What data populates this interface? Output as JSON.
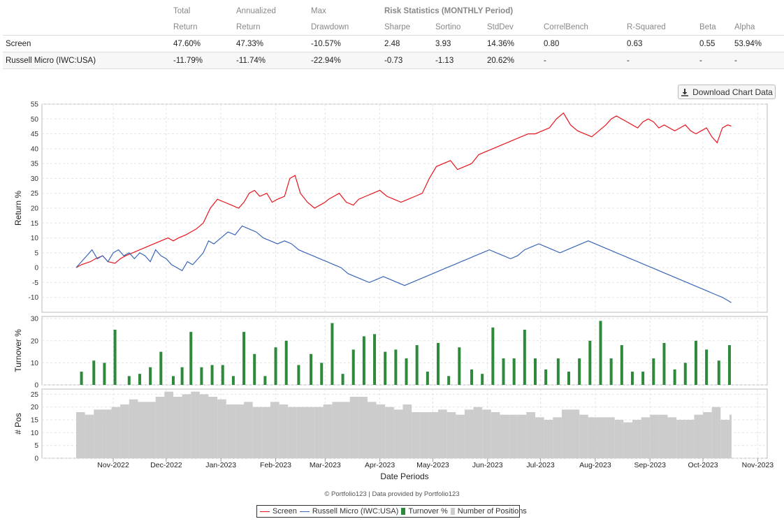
{
  "stats": {
    "header1": [
      "",
      "Total",
      "Annualized",
      "Max",
      "Risk Statistics (MONTHLY Period)"
    ],
    "header2": [
      "",
      "Return",
      "Return",
      "Drawdown",
      "Sharpe",
      "Sortino",
      "StdDev",
      "CorrelBench",
      "R-Squared",
      "Beta",
      "Alpha"
    ],
    "rows": [
      {
        "name": "Screen",
        "cells": [
          "47.60%",
          "47.33%",
          "-10.57%",
          "2.48",
          "3.93",
          "14.36%",
          "0.80",
          "0.63",
          "0.55",
          "53.94%"
        ]
      },
      {
        "name": "Russell Micro (IWC:USA)",
        "cells": [
          "-11.79%",
          "-11.74%",
          "-22.94%",
          "-0.73",
          "-1.13",
          "20.62%",
          "-",
          "-",
          "-",
          "-"
        ]
      }
    ]
  },
  "download_button": {
    "label": "Download Chart Data",
    "icon": "download-icon"
  },
  "credit": "© Portfolio123 | Data provided by Portfolio123",
  "legend": [
    {
      "label": "Screen",
      "kind": "line",
      "color": "#e8141c"
    },
    {
      "label": "Russell Micro (IWC:USA)",
      "kind": "line",
      "color": "#3a66b8"
    },
    {
      "label": "Turnover %",
      "kind": "box",
      "color": "#2d8a3a"
    },
    {
      "label": "Number of Positions",
      "kind": "box",
      "color": "#cccccc"
    }
  ],
  "chart_data": [
    {
      "type": "line",
      "title": "",
      "xlabel": "Date Periods",
      "ylabel": "Return %",
      "ylim": [
        -15,
        55
      ],
      "yticks": [
        -10,
        -5,
        0,
        5,
        10,
        15,
        20,
        25,
        30,
        35,
        40,
        45,
        50,
        55
      ],
      "x_domain": [
        0,
        372
      ],
      "xticks": [
        {
          "x": 21,
          "label": "Nov-2022"
        },
        {
          "x": 51,
          "label": "Dec-2022"
        },
        {
          "x": 82,
          "label": "Jan-2023"
        },
        {
          "x": 113,
          "label": "Feb-2023"
        },
        {
          "x": 141,
          "label": "Mar-2023"
        },
        {
          "x": 172,
          "label": "Apr-2023"
        },
        {
          "x": 202,
          "label": "May-2023"
        },
        {
          "x": 233,
          "label": "Jun-2023"
        },
        {
          "x": 263,
          "label": "Jul-2023"
        },
        {
          "x": 294,
          "label": "Aug-2023"
        },
        {
          "x": 325,
          "label": "Sep-2023"
        },
        {
          "x": 355,
          "label": "Oct-2023"
        },
        {
          "x": 386,
          "label": "Nov-2023"
        }
      ],
      "series": [
        {
          "name": "Screen",
          "color": "#e8141c",
          "x": [
            0,
            3,
            8,
            11,
            15,
            18,
            22,
            25,
            28,
            32,
            36,
            40,
            44,
            48,
            52,
            55,
            58,
            62,
            65,
            68,
            72,
            76,
            80,
            84,
            88,
            92,
            95,
            98,
            101,
            104,
            108,
            111,
            114,
            118,
            121,
            124,
            127,
            131,
            135,
            138,
            141,
            143,
            146,
            149,
            153,
            157,
            160,
            164,
            168,
            172,
            176,
            180,
            184,
            188,
            192,
            196,
            200,
            204,
            208,
            212,
            216,
            220,
            224,
            228,
            232,
            236,
            240,
            244,
            248,
            252,
            256,
            260,
            264,
            268,
            272,
            276,
            280,
            284,
            288,
            292,
            296,
            300,
            303,
            306,
            309,
            312,
            315,
            318,
            321,
            324,
            327,
            330,
            333,
            336,
            339,
            342,
            345,
            348,
            351,
            354,
            357,
            360,
            363,
            366,
            369,
            371
          ],
          "y": [
            0,
            1,
            2,
            3,
            4,
            2,
            1.5,
            3,
            4,
            5,
            6,
            7,
            8,
            9,
            10,
            9,
            10,
            11,
            12,
            13,
            15,
            20,
            23,
            22,
            21,
            20,
            22,
            25,
            26,
            24,
            25,
            22,
            23,
            24,
            30,
            31,
            25,
            22,
            20,
            21,
            22,
            23,
            24,
            25,
            22,
            21,
            23,
            24,
            25,
            26,
            24,
            23,
            22,
            23,
            24,
            25,
            30,
            34,
            35,
            36,
            33,
            34,
            35,
            38,
            39,
            40,
            41,
            42,
            43,
            44,
            45,
            45,
            46,
            47,
            50,
            52,
            48,
            46,
            45,
            44,
            46,
            48,
            50,
            51,
            50,
            49,
            48,
            47,
            49,
            50,
            49,
            47,
            48,
            47,
            46,
            47,
            48,
            46,
            45,
            46,
            47,
            44,
            42,
            47,
            48,
            47.6
          ]
        },
        {
          "name": "Russell Micro (IWC:USA)",
          "color": "#3a66b8",
          "x": [
            0,
            3,
            6,
            9,
            12,
            15,
            18,
            21,
            24,
            27,
            30,
            33,
            36,
            39,
            42,
            45,
            48,
            51,
            54,
            57,
            60,
            63,
            66,
            69,
            72,
            75,
            78,
            82,
            86,
            90,
            94,
            98,
            102,
            106,
            110,
            114,
            118,
            122,
            126,
            130,
            134,
            138,
            142,
            146,
            150,
            154,
            158,
            162,
            166,
            170,
            174,
            178,
            182,
            186,
            190,
            194,
            198,
            202,
            206,
            210,
            214,
            218,
            222,
            226,
            230,
            234,
            238,
            242,
            246,
            250,
            254,
            258,
            262,
            266,
            270,
            274,
            278,
            282,
            286,
            290,
            294,
            298,
            302,
            306,
            310,
            314,
            318,
            322,
            326,
            330,
            334,
            338,
            342,
            346,
            350,
            354,
            358,
            362,
            366,
            369,
            371
          ],
          "y": [
            0,
            2,
            4,
            6,
            3,
            4,
            2,
            5,
            6,
            4,
            5,
            3,
            5,
            4,
            2,
            6,
            4,
            3,
            1,
            0,
            -1,
            2,
            1,
            3,
            5,
            9,
            8,
            10,
            12,
            11,
            14,
            13,
            12,
            10,
            9,
            8,
            9,
            8,
            6,
            5,
            4,
            3,
            2,
            1,
            0,
            -2,
            -3,
            -4,
            -5,
            -4,
            -3,
            -4,
            -5,
            -6,
            -5,
            -4,
            -3,
            -2,
            -1,
            0,
            1,
            2,
            3,
            4,
            5,
            6,
            5,
            4,
            3,
            4,
            6,
            7,
            8,
            7,
            6,
            5,
            6,
            7,
            8,
            9,
            8,
            7,
            6,
            5,
            4,
            3,
            2,
            1,
            0,
            -1,
            -2,
            -3,
            -4,
            -5,
            -6,
            -7,
            -8,
            -9,
            -10,
            -11,
            -11.79
          ]
        }
      ]
    },
    {
      "type": "bar",
      "ylabel": "Turnover %",
      "ylim": [
        0,
        31
      ],
      "yticks": [
        0,
        10,
        20,
        30
      ],
      "x": [
        3,
        10,
        16,
        22,
        30,
        36,
        42,
        48,
        55,
        60,
        65,
        71,
        77,
        83,
        89,
        95,
        101,
        107,
        113,
        119,
        126,
        133,
        139,
        145,
        151,
        157,
        163,
        169,
        175,
        181,
        187,
        193,
        199,
        205,
        211,
        217,
        224,
        230,
        236,
        242,
        248,
        254,
        260,
        266,
        273,
        279,
        285,
        291,
        297,
        303,
        309,
        315,
        321,
        327,
        333,
        339,
        345,
        351,
        357,
        364,
        370
      ],
      "values": [
        6,
        11,
        10,
        25,
        4,
        5,
        8,
        15,
        4,
        8,
        24,
        8,
        9,
        9,
        4,
        24,
        14,
        4,
        17,
        20,
        9,
        14,
        10,
        28,
        5,
        16,
        22,
        23,
        15,
        16,
        12,
        18,
        6,
        19,
        4,
        17,
        7,
        5,
        26,
        12,
        12,
        25,
        12,
        7,
        12,
        6,
        12,
        20,
        29,
        12,
        18,
        6,
        6,
        12,
        19,
        7,
        10,
        20,
        16,
        11,
        18
      ]
    },
    {
      "type": "bar",
      "ylabel": "# Pos",
      "ylim": [
        0,
        27
      ],
      "yticks": [
        0,
        5,
        10,
        15,
        20,
        25
      ],
      "x": [
        0,
        5,
        10,
        15,
        20,
        25,
        30,
        35,
        40,
        45,
        50,
        55,
        60,
        65,
        70,
        75,
        80,
        85,
        90,
        95,
        100,
        105,
        110,
        115,
        120,
        125,
        130,
        135,
        140,
        145,
        150,
        155,
        160,
        165,
        170,
        175,
        180,
        185,
        190,
        195,
        200,
        205,
        210,
        215,
        220,
        225,
        230,
        235,
        240,
        245,
        250,
        255,
        260,
        265,
        270,
        275,
        280,
        285,
        290,
        295,
        300,
        305,
        310,
        315,
        320,
        325,
        330,
        335,
        340,
        345,
        350,
        355,
        360,
        365,
        370
      ],
      "values": [
        18,
        17,
        19,
        19,
        20,
        21,
        23,
        22,
        22,
        24,
        26,
        24,
        25,
        26,
        25,
        24,
        23,
        21,
        21,
        22,
        20,
        20,
        22,
        21,
        20,
        20,
        20,
        20,
        21,
        22,
        22,
        24,
        24,
        22,
        21,
        20,
        19,
        21,
        18,
        18,
        18,
        19,
        18,
        17,
        19,
        20,
        19,
        18,
        17,
        17,
        17,
        18,
        16,
        15,
        16,
        19,
        19,
        17,
        16,
        16,
        16,
        15,
        14,
        15,
        16,
        17,
        17,
        16,
        15,
        15,
        17,
        18,
        20,
        15,
        17
      ]
    }
  ]
}
